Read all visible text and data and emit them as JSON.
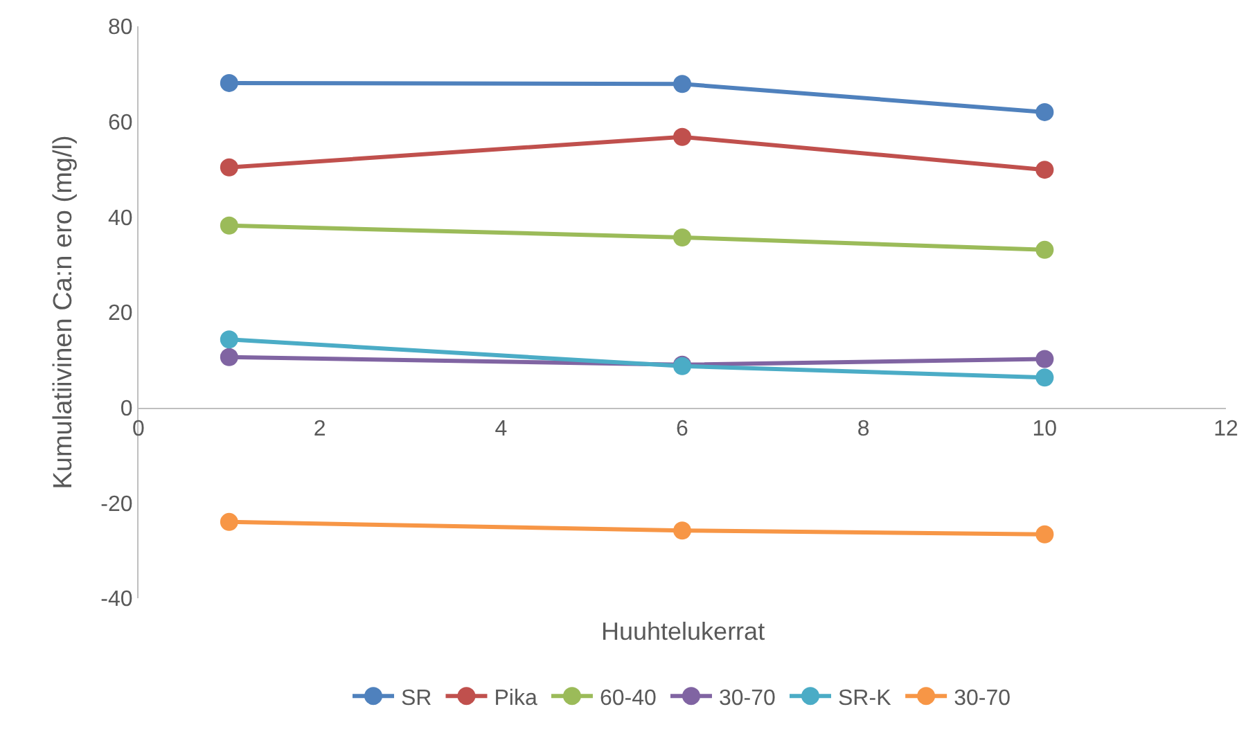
{
  "chart_data": {
    "type": "line",
    "xlabel": "Huuhtelukerrat",
    "ylabel": "Kumulatiivinen Ca:n ero (mg/l)",
    "x": [
      1,
      6,
      10
    ],
    "xlim": [
      0,
      12
    ],
    "xticks": [
      0,
      2,
      4,
      6,
      8,
      10,
      12
    ],
    "ylim": [
      -40,
      80
    ],
    "yticks": [
      -40,
      -20,
      0,
      20,
      40,
      60,
      80
    ],
    "legend": "bottom",
    "marker": "circle",
    "line_style": "solid",
    "series": [
      {
        "name": "SR",
        "color": "#4f81bd",
        "values": [
          68.1,
          67.9,
          62.0
        ]
      },
      {
        "name": "Pika",
        "color": "#c0504d",
        "values": [
          50.4,
          56.8,
          49.9
        ]
      },
      {
        "name": "60-40",
        "color": "#9bbb59",
        "values": [
          38.2,
          35.7,
          33.1
        ]
      },
      {
        "name": "30-70",
        "color": "#8064a2",
        "values": [
          10.6,
          9.0,
          10.2
        ]
      },
      {
        "name": "SR-K",
        "color": "#4bacc6",
        "values": [
          14.3,
          8.7,
          6.3
        ]
      },
      {
        "name": "30-70",
        "color": "#f79646",
        "values": [
          -24.0,
          -25.8,
          -26.6
        ]
      }
    ]
  }
}
